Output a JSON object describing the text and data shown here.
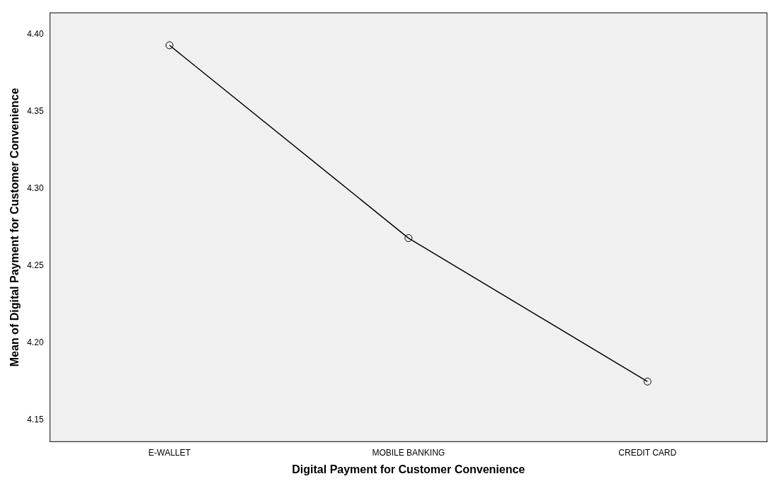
{
  "chart_data": {
    "type": "line",
    "xlabel": "Digital Payment for Customer Convenience",
    "ylabel": "Mean of Digital Payment for Customer Convenience",
    "categories": [
      "E-WALLET",
      "MOBILE BANKING",
      "CREDIT CARD"
    ],
    "series": [
      {
        "color": "#000000",
        "values": [
          4.393,
          4.268,
          4.175
        ]
      }
    ],
    "ylim": [
      4.136,
      4.414
    ],
    "yticks": [
      {
        "value": 4.15,
        "label": "4.15"
      },
      {
        "value": 4.2,
        "label": "4.20"
      },
      {
        "value": 4.25,
        "label": "4.25"
      },
      {
        "value": 4.3,
        "label": "4.30"
      },
      {
        "value": 4.35,
        "label": "4.35"
      },
      {
        "value": 4.4,
        "label": "4.40"
      }
    ],
    "grid": false,
    "legend": false,
    "marker": "circle",
    "line_style": "solid"
  }
}
